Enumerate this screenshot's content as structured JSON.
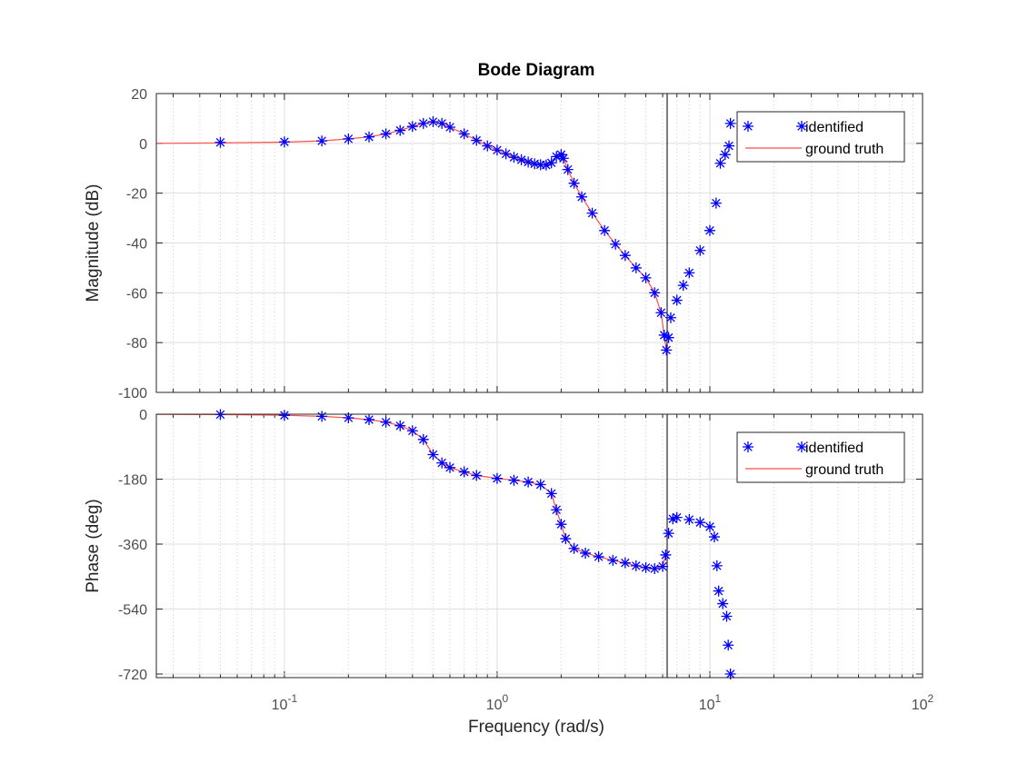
{
  "chart_data": {
    "type": "line",
    "title": "Bode Diagram",
    "xlabel": "Frequency  (rad/s)",
    "x_scale": "log",
    "xlim": [
      0.025,
      100
    ],
    "x_ticks": [
      {
        "value": 0.1,
        "base": "10",
        "exp": "-1"
      },
      {
        "value": 1,
        "base": "10",
        "exp": "0"
      },
      {
        "value": 10,
        "base": "10",
        "exp": "1"
      },
      {
        "value": 100,
        "base": "10",
        "exp": "2"
      }
    ],
    "grid": true,
    "vertical_line_x": 6.3,
    "panels": [
      {
        "name": "magnitude",
        "ylabel": "Magnitude (dB)",
        "ylim": [
          -100,
          20
        ],
        "y_ticks": [
          20,
          0,
          -20,
          -40,
          -60,
          -80,
          -100
        ],
        "y_tick_labels": [
          "20",
          "0",
          "-20",
          "-40",
          "-60",
          "-80",
          "-100"
        ],
        "legend_position": "top-right",
        "series": [
          {
            "name": "identified",
            "style": "markers-asterisk",
            "color": "#0000ff",
            "points": [
              [
                0.05,
                0.4
              ],
              [
                0.1,
                0.6
              ],
              [
                0.15,
                1.0
              ],
              [
                0.2,
                1.8
              ],
              [
                0.25,
                2.6
              ],
              [
                0.3,
                3.8
              ],
              [
                0.35,
                5.2
              ],
              [
                0.4,
                6.8
              ],
              [
                0.45,
                8.0
              ],
              [
                0.5,
                8.7
              ],
              [
                0.55,
                8.0
              ],
              [
                0.6,
                6.5
              ],
              [
                0.7,
                3.8
              ],
              [
                0.8,
                1.2
              ],
              [
                0.9,
                -1.0
              ],
              [
                1.0,
                -2.7
              ],
              [
                1.1,
                -4.2
              ],
              [
                1.2,
                -5.6
              ],
              [
                1.3,
                -6.6
              ],
              [
                1.4,
                -7.5
              ],
              [
                1.5,
                -8.2
              ],
              [
                1.6,
                -8.6
              ],
              [
                1.7,
                -8.7
              ],
              [
                1.8,
                -7.8
              ],
              [
                1.9,
                -5.3
              ],
              [
                2.0,
                -4.5
              ],
              [
                2.05,
                -6.0
              ],
              [
                2.15,
                -10.5
              ],
              [
                2.3,
                -16.0
              ],
              [
                2.5,
                -21.5
              ],
              [
                2.8,
                -28.0
              ],
              [
                3.2,
                -35.0
              ],
              [
                3.6,
                -40.5
              ],
              [
                4.0,
                -45.0
              ],
              [
                4.5,
                -50.0
              ],
              [
                5.0,
                -54.0
              ],
              [
                5.5,
                -60.0
              ],
              [
                5.9,
                -68.0
              ],
              [
                6.1,
                -77.0
              ],
              [
                6.25,
                -83.0
              ],
              [
                6.4,
                -78.0
              ],
              [
                6.55,
                -70.0
              ],
              [
                7.0,
                -63.0
              ],
              [
                7.5,
                -57.0
              ],
              [
                8.0,
                -52.0
              ],
              [
                9.0,
                -43.0
              ],
              [
                10.0,
                -35.0
              ],
              [
                10.7,
                -24.0
              ],
              [
                11.2,
                -8.0
              ],
              [
                11.8,
                -4.5
              ],
              [
                12.3,
                -1.0
              ],
              [
                12.5,
                8.0
              ]
            ]
          },
          {
            "name": "ground truth",
            "style": "line",
            "color": "#ff4d4d",
            "points": [
              [
                0.025,
                0.0
              ],
              [
                0.05,
                0.2
              ],
              [
                0.1,
                0.5
              ],
              [
                0.15,
                1.0
              ],
              [
                0.2,
                1.8
              ],
              [
                0.25,
                2.6
              ],
              [
                0.3,
                3.8
              ],
              [
                0.35,
                5.2
              ],
              [
                0.4,
                6.8
              ],
              [
                0.45,
                8.0
              ],
              [
                0.5,
                8.7
              ],
              [
                0.55,
                8.0
              ],
              [
                0.6,
                6.5
              ],
              [
                0.7,
                3.8
              ],
              [
                0.8,
                1.2
              ],
              [
                0.9,
                -1.0
              ],
              [
                1.0,
                -2.7
              ],
              [
                1.1,
                -4.2
              ],
              [
                1.2,
                -5.6
              ],
              [
                1.3,
                -6.6
              ],
              [
                1.4,
                -7.5
              ],
              [
                1.5,
                -8.2
              ],
              [
                1.6,
                -8.6
              ],
              [
                1.7,
                -8.7
              ],
              [
                1.8,
                -7.8
              ],
              [
                1.9,
                -5.3
              ],
              [
                2.0,
                -4.5
              ],
              [
                2.05,
                -6.0
              ],
              [
                2.15,
                -10.5
              ],
              [
                2.3,
                -16.0
              ],
              [
                2.5,
                -21.5
              ],
              [
                2.8,
                -28.0
              ],
              [
                3.2,
                -35.0
              ],
              [
                3.6,
                -40.5
              ],
              [
                4.0,
                -45.0
              ],
              [
                4.5,
                -50.0
              ],
              [
                5.0,
                -54.0
              ],
              [
                5.5,
                -60.0
              ],
              [
                5.9,
                -68.0
              ],
              [
                6.1,
                -77.0
              ],
              [
                6.25,
                -83.0
              ]
            ]
          }
        ]
      },
      {
        "name": "phase",
        "ylabel": "Phase (deg)",
        "ylim": [
          -730,
          0
        ],
        "y_ticks": [
          0,
          -180,
          -360,
          -540,
          -720
        ],
        "y_tick_labels": [
          "0",
          "-180",
          "-360",
          "-540",
          "-720"
        ],
        "legend_position": "top-right",
        "series": [
          {
            "name": "identified",
            "style": "markers-asterisk",
            "color": "#0000ff",
            "points": [
              [
                0.05,
                -1
              ],
              [
                0.1,
                -3
              ],
              [
                0.15,
                -6
              ],
              [
                0.2,
                -10
              ],
              [
                0.25,
                -15
              ],
              [
                0.3,
                -22
              ],
              [
                0.35,
                -32
              ],
              [
                0.4,
                -46
              ],
              [
                0.45,
                -70
              ],
              [
                0.5,
                -112
              ],
              [
                0.55,
                -135
              ],
              [
                0.6,
                -148
              ],
              [
                0.7,
                -160
              ],
              [
                0.8,
                -170
              ],
              [
                1.0,
                -178
              ],
              [
                1.2,
                -183
              ],
              [
                1.4,
                -188
              ],
              [
                1.6,
                -195
              ],
              [
                1.8,
                -220
              ],
              [
                1.9,
                -265
              ],
              [
                2.0,
                -305
              ],
              [
                2.1,
                -345
              ],
              [
                2.3,
                -372
              ],
              [
                2.6,
                -385
              ],
              [
                3.0,
                -395
              ],
              [
                3.5,
                -405
              ],
              [
                4.0,
                -412
              ],
              [
                4.5,
                -420
              ],
              [
                5.0,
                -425
              ],
              [
                5.5,
                -428
              ],
              [
                6.0,
                -422
              ],
              [
                6.2,
                -390
              ],
              [
                6.4,
                -330
              ],
              [
                6.7,
                -290
              ],
              [
                7.0,
                -286
              ],
              [
                8.0,
                -292
              ],
              [
                9.0,
                -300
              ],
              [
                10.0,
                -312
              ],
              [
                10.5,
                -340
              ],
              [
                10.8,
                -420
              ],
              [
                11.0,
                -490
              ],
              [
                11.5,
                -525
              ],
              [
                12.0,
                -560
              ],
              [
                12.2,
                -640
              ],
              [
                12.5,
                -720
              ]
            ]
          },
          {
            "name": "ground truth",
            "style": "line",
            "color": "#ff4d4d",
            "points": [
              [
                0.025,
                -0.5
              ],
              [
                0.05,
                -1
              ],
              [
                0.1,
                -3
              ],
              [
                0.15,
                -6
              ],
              [
                0.2,
                -10
              ],
              [
                0.25,
                -15
              ],
              [
                0.3,
                -22
              ],
              [
                0.35,
                -32
              ],
              [
                0.4,
                -46
              ],
              [
                0.45,
                -70
              ],
              [
                0.5,
                -112
              ],
              [
                0.55,
                -135
              ],
              [
                0.6,
                -148
              ],
              [
                0.7,
                -160
              ],
              [
                0.8,
                -170
              ],
              [
                1.0,
                -178
              ],
              [
                1.2,
                -183
              ],
              [
                1.4,
                -188
              ],
              [
                1.6,
                -195
              ],
              [
                1.8,
                -220
              ],
              [
                1.9,
                -265
              ],
              [
                2.0,
                -305
              ],
              [
                2.1,
                -345
              ],
              [
                2.3,
                -372
              ],
              [
                2.6,
                -385
              ],
              [
                3.0,
                -395
              ],
              [
                3.5,
                -405
              ],
              [
                4.0,
                -412
              ],
              [
                4.5,
                -420
              ],
              [
                5.0,
                -425
              ],
              [
                5.5,
                -428
              ],
              [
                6.0,
                -422
              ],
              [
                6.2,
                -390
              ]
            ]
          }
        ]
      }
    ]
  }
}
